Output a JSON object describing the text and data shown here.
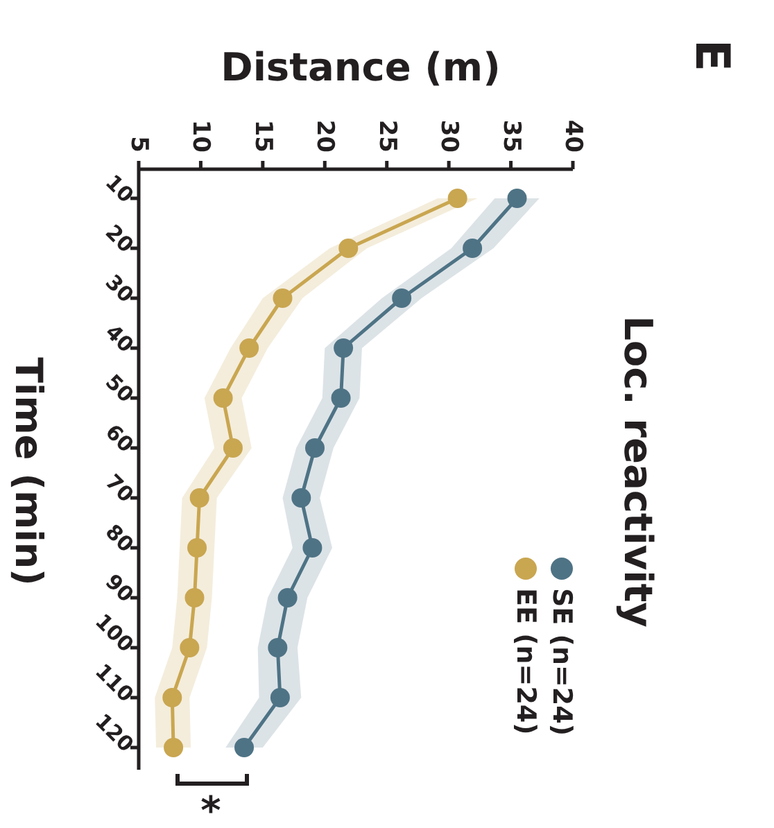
{
  "chart_data": {
    "type": "line",
    "orientation": "horizontal",
    "title": "Loc. reactivity",
    "xlabel": "Distance (m)",
    "ylabel": "Time (min)",
    "categories": [
      "10",
      "20",
      "30",
      "40",
      "50",
      "60",
      "70",
      "80",
      "90",
      "100",
      "110",
      "120"
    ],
    "series": [
      {
        "name": "SE (n=24)",
        "color": "#4e7385",
        "values": [
          35.5,
          31.9,
          26.2,
          21.5,
          21.3,
          19.2,
          18.1,
          19.0,
          17.0,
          16.2,
          16.4,
          13.5
        ],
        "lower": [
          33.7,
          30.2,
          24.6,
          20.0,
          19.8,
          17.7,
          16.6,
          17.4,
          15.4,
          14.6,
          14.7,
          12.0
        ],
        "upper": [
          37.3,
          33.6,
          27.8,
          23.0,
          22.8,
          20.7,
          19.6,
          20.6,
          18.6,
          17.8,
          18.1,
          15.0
        ]
      },
      {
        "name": "EE (n=24)",
        "color": "#c9a650",
        "values": [
          30.7,
          21.9,
          16.6,
          13.9,
          11.8,
          12.6,
          9.9,
          9.7,
          9.5,
          9.1,
          7.7,
          7.8
        ],
        "lower": [
          29.1,
          20.4,
          15.0,
          12.4,
          10.3,
          11.1,
          8.5,
          8.3,
          8.1,
          7.7,
          6.3,
          6.4
        ],
        "upper": [
          32.3,
          23.4,
          18.2,
          15.4,
          13.3,
          14.1,
          11.3,
          11.1,
          10.9,
          10.5,
          9.1,
          9.2
        ]
      }
    ],
    "xlim": [
      5,
      40
    ],
    "xticks": [
      5,
      10,
      15,
      20,
      25,
      30,
      35,
      40
    ],
    "legend": "bottom right",
    "marker": "circle",
    "line_style": "solid",
    "annotations": [
      "E",
      "*"
    ]
  }
}
